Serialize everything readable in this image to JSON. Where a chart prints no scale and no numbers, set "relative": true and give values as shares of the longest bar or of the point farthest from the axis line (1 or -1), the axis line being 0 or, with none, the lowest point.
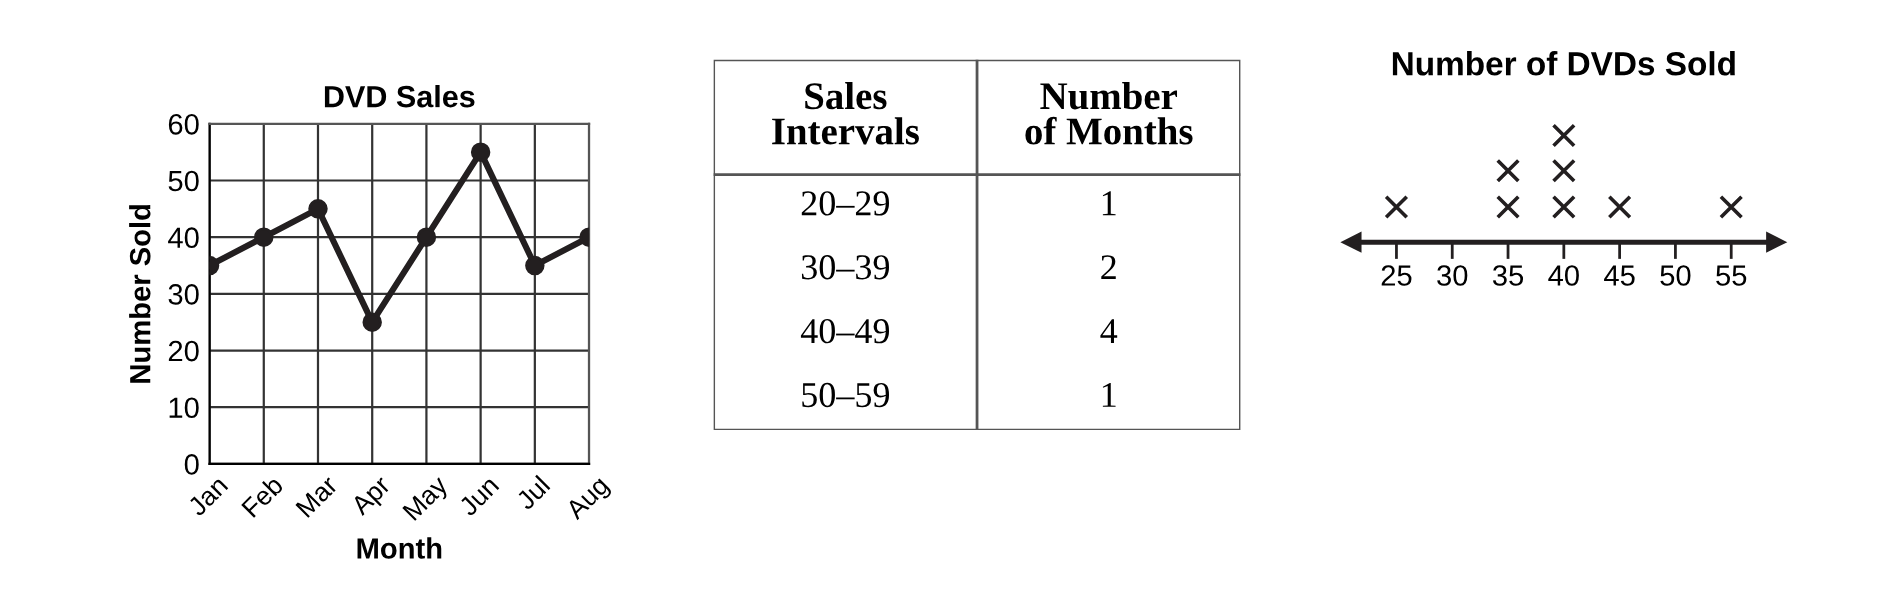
{
  "chart_data": [
    {
      "type": "line",
      "title": "DVD Sales",
      "xlabel": "Month",
      "ylabel": "Number Sold",
      "categories": [
        "Jan",
        "Feb",
        "Mar",
        "Apr",
        "May",
        "Jun",
        "Jul",
        "Aug"
      ],
      "series": [
        {
          "color": "#231f20",
          "values": [
            35,
            40,
            45,
            25,
            40,
            55,
            35,
            40
          ]
        }
      ],
      "ylim": [
        0,
        60
      ],
      "yticks": [
        0,
        10,
        20,
        30,
        40,
        50,
        60
      ],
      "grid": true,
      "marker": "circle",
      "line_style": "solid",
      "legend": false
    },
    {
      "type": "other",
      "xlabel": "Sales\nIntervals",
      "ylabel": "Number\nof Months",
      "categories": [
        "20–29",
        "30–39",
        "40–49",
        "50–59"
      ],
      "values": [
        1,
        2,
        4,
        1
      ],
      "data_labels": true
    },
    {
      "type": "scatter",
      "title": "Number of DVDs Sold",
      "relative": true,
      "x": [
        25,
        35,
        35,
        40,
        40,
        40,
        45,
        55
      ],
      "series": [
        {
          "color": "#231f20",
          "values": [
            0.33,
            0.33,
            0.67,
            0.33,
            0.67,
            1,
            0.33,
            0.33
          ]
        }
      ],
      "xlim": [
        21,
        59
      ],
      "xticks": [
        25,
        30,
        35,
        40,
        45,
        50,
        55
      ],
      "marker": "cross",
      "tick_labels": "x",
      "grid": false,
      "legend": false
    }
  ]
}
